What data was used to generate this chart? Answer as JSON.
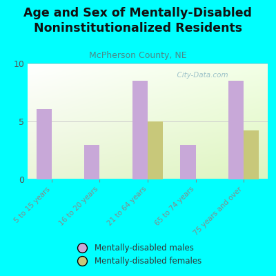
{
  "title": "Age and Sex of Mentally-Disabled\nNoninstitutionalized Residents",
  "subtitle": "McPherson County, NE",
  "categories": [
    "5 to 15 years",
    "16 to 20 years",
    "21 to 64 years",
    "65 to 74 years",
    "75 years and over"
  ],
  "males": [
    6.1,
    3.0,
    8.5,
    3.0,
    8.5
  ],
  "females": [
    0,
    0,
    5.0,
    0,
    4.2
  ],
  "male_color": "#C8A8D8",
  "female_color": "#C8C87A",
  "ylim": [
    0,
    10
  ],
  "yticks": [
    0,
    5,
    10
  ],
  "bg_color": "#00FFFF",
  "bar_width": 0.32,
  "watermark": "  City-Data.com",
  "legend_male": "Mentally-disabled males",
  "legend_female": "Mentally-disabled females",
  "title_fontsize": 12.5,
  "subtitle_fontsize": 9,
  "subtitle_color": "#4A8A8A",
  "tick_label_color": "#555555",
  "grid_color": "#CCCCCC"
}
